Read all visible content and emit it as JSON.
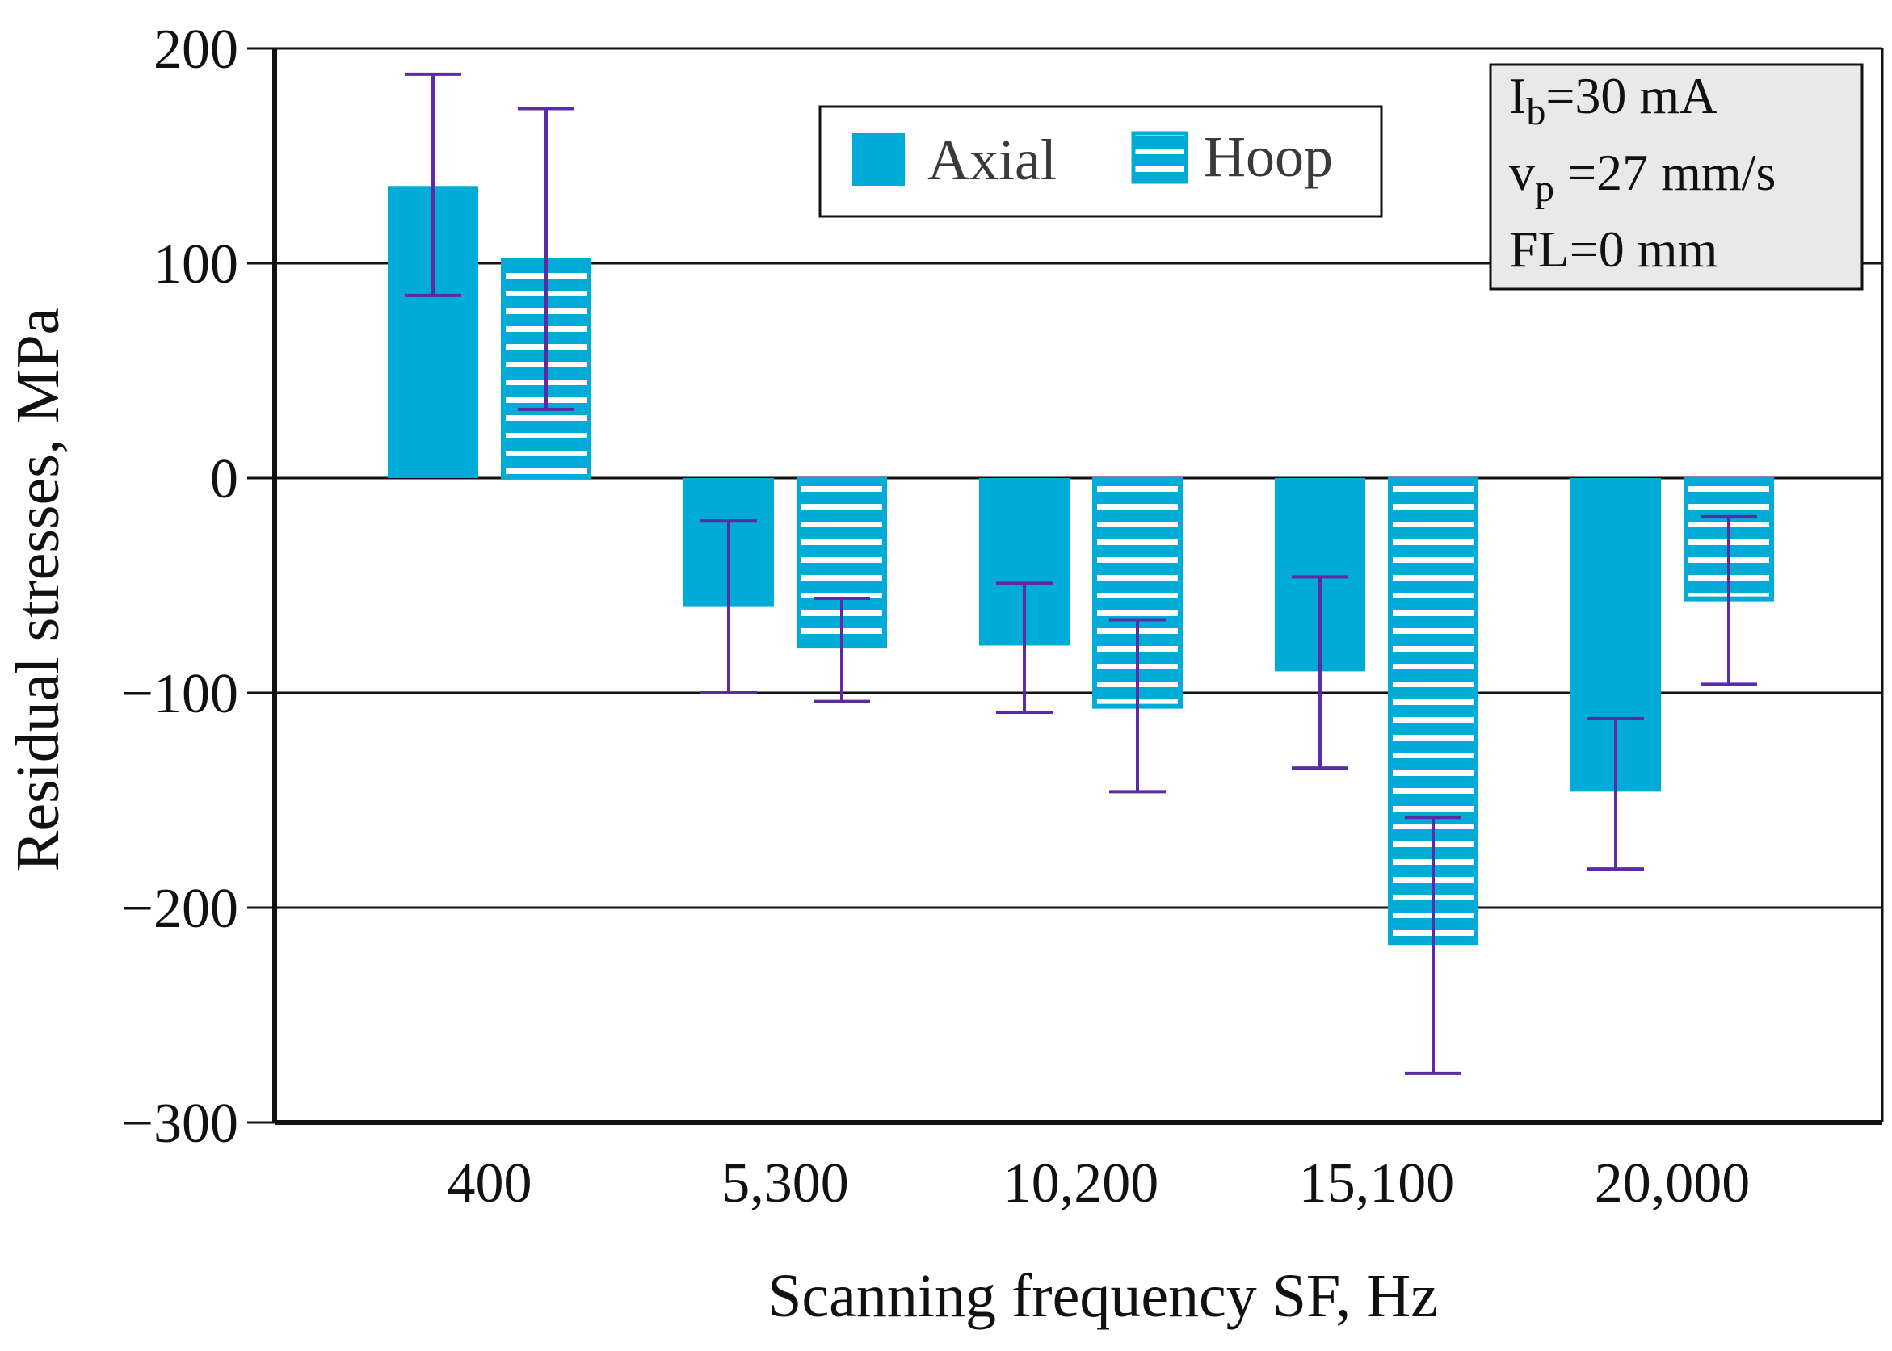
{
  "chart_data": {
    "type": "bar",
    "title": "",
    "xlabel": "Scanning frequency SF, Hz",
    "ylabel": "Residual stresses, MPa",
    "ylim": [
      -300,
      200
    ],
    "yticks": [
      200,
      100,
      0,
      -100,
      -200,
      -300
    ],
    "ytick_labels": [
      "200",
      "100",
      "0",
      "−100",
      "−200",
      "−300"
    ],
    "grid": "horizontal",
    "categories": [
      "400",
      "5,300",
      "10,200",
      "15,100",
      "20,000"
    ],
    "series": [
      {
        "name": "Axial",
        "style": "solid",
        "values": [
          136,
          -60,
          -78,
          -90,
          -146
        ],
        "error_low": [
          85,
          -100,
          -109,
          -135,
          -182
        ],
        "error_high": [
          188,
          -20,
          -49,
          -46,
          -112
        ]
      },
      {
        "name": "Hoop",
        "style": "striped",
        "values": [
          102,
          -79,
          -107,
          -217,
          -57
        ],
        "error_low": [
          32,
          -104,
          -146,
          -277,
          -96
        ],
        "error_high": [
          172,
          -56,
          -66,
          -158,
          -18
        ]
      }
    ],
    "legend": {
      "position": "top-center"
    },
    "annotation": {
      "position": "top-right",
      "lines": [
        {
          "main": "I",
          "sub": "b",
          "rest": "=30 mA"
        },
        {
          "main": "v",
          "sub": "p",
          "rest": " =27 mm/s"
        },
        {
          "main": "FL=0 mm",
          "sub": "",
          "rest": ""
        }
      ]
    }
  },
  "colors": {
    "bar": "#00acd7",
    "error_bar": "#5b2aa5",
    "axis": "#111111",
    "annotation_bg": "#e9e9e9",
    "stripe": "#ffffff"
  }
}
